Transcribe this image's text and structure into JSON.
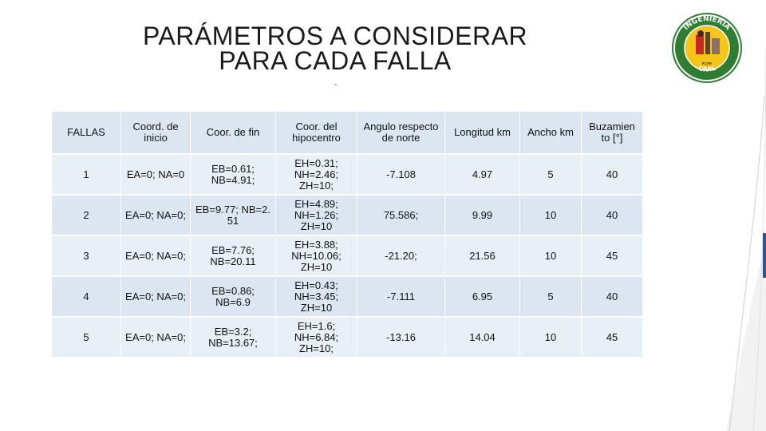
{
  "slide": {
    "title_line1": "PARÁMETROS A CONSIDERAR",
    "title_line2": "PARA CADA FALLA",
    "mark": "'"
  },
  "logo": {
    "text_top": "INGENIERIA",
    "text_bottom": "CIVIL",
    "text_mid": "FCFE",
    "icon": "university-seal-icon",
    "colors": {
      "ring": "#2e7d32",
      "inner": "#f5c518",
      "accent": "#c62828"
    }
  },
  "table": {
    "headers": [
      "FALLAS",
      "Coord. de inicio",
      "Coor. de fin",
      "Coor. del hipocentro",
      "Angulo respecto de norte",
      "Longitud km",
      "Ancho km",
      "Buzamiento [°]"
    ],
    "header_display": {
      "buzamiento_line1": "Buzamien",
      "buzamiento_line2": "to [°]"
    },
    "rows": [
      {
        "falla": "1",
        "inicio": "EA=0; NA=0",
        "fin": "EB=0.61; NB=4.91;",
        "hipocentro": "EH=0.31; NH=2.46; ZH=10;",
        "angulo": "-7.108",
        "longitud": "4.97",
        "ancho": "5",
        "buzamiento": "40"
      },
      {
        "falla": "2",
        "inicio": "EA=0; NA=0;",
        "fin": "EB=9.77; NB=2. 51",
        "hipocentro": "EH=4.89; NH=1.26; ZH=10",
        "angulo": "75.586;",
        "longitud": "9.99",
        "ancho": "10",
        "buzamiento": "40"
      },
      {
        "falla": "3",
        "inicio": "EA=0; NA=0;",
        "fin": "EB=7.76; NB=20.11",
        "hipocentro": "EH=3.88; NH=10.06; ZH=10",
        "angulo": "-21.20;",
        "longitud": "21.56",
        "ancho": "10",
        "buzamiento": "45"
      },
      {
        "falla": "4",
        "inicio": "EA=0; NA=0;",
        "fin": "EB=0.86; NB=6.9",
        "hipocentro": "EH=0.43; NH=3.45; ZH=10",
        "angulo": "-7.111",
        "longitud": "6.95",
        "ancho": "5",
        "buzamiento": "40"
      },
      {
        "falla": "5",
        "inicio": "EA=0; NA=0;",
        "fin": "EB=3.2; NB=13.67;",
        "hipocentro": "EH=1.6; NH=6.84; ZH=10;",
        "angulo": "-13.16",
        "longitud": "14.04",
        "ancho": "10",
        "buzamiento": "45"
      }
    ]
  }
}
